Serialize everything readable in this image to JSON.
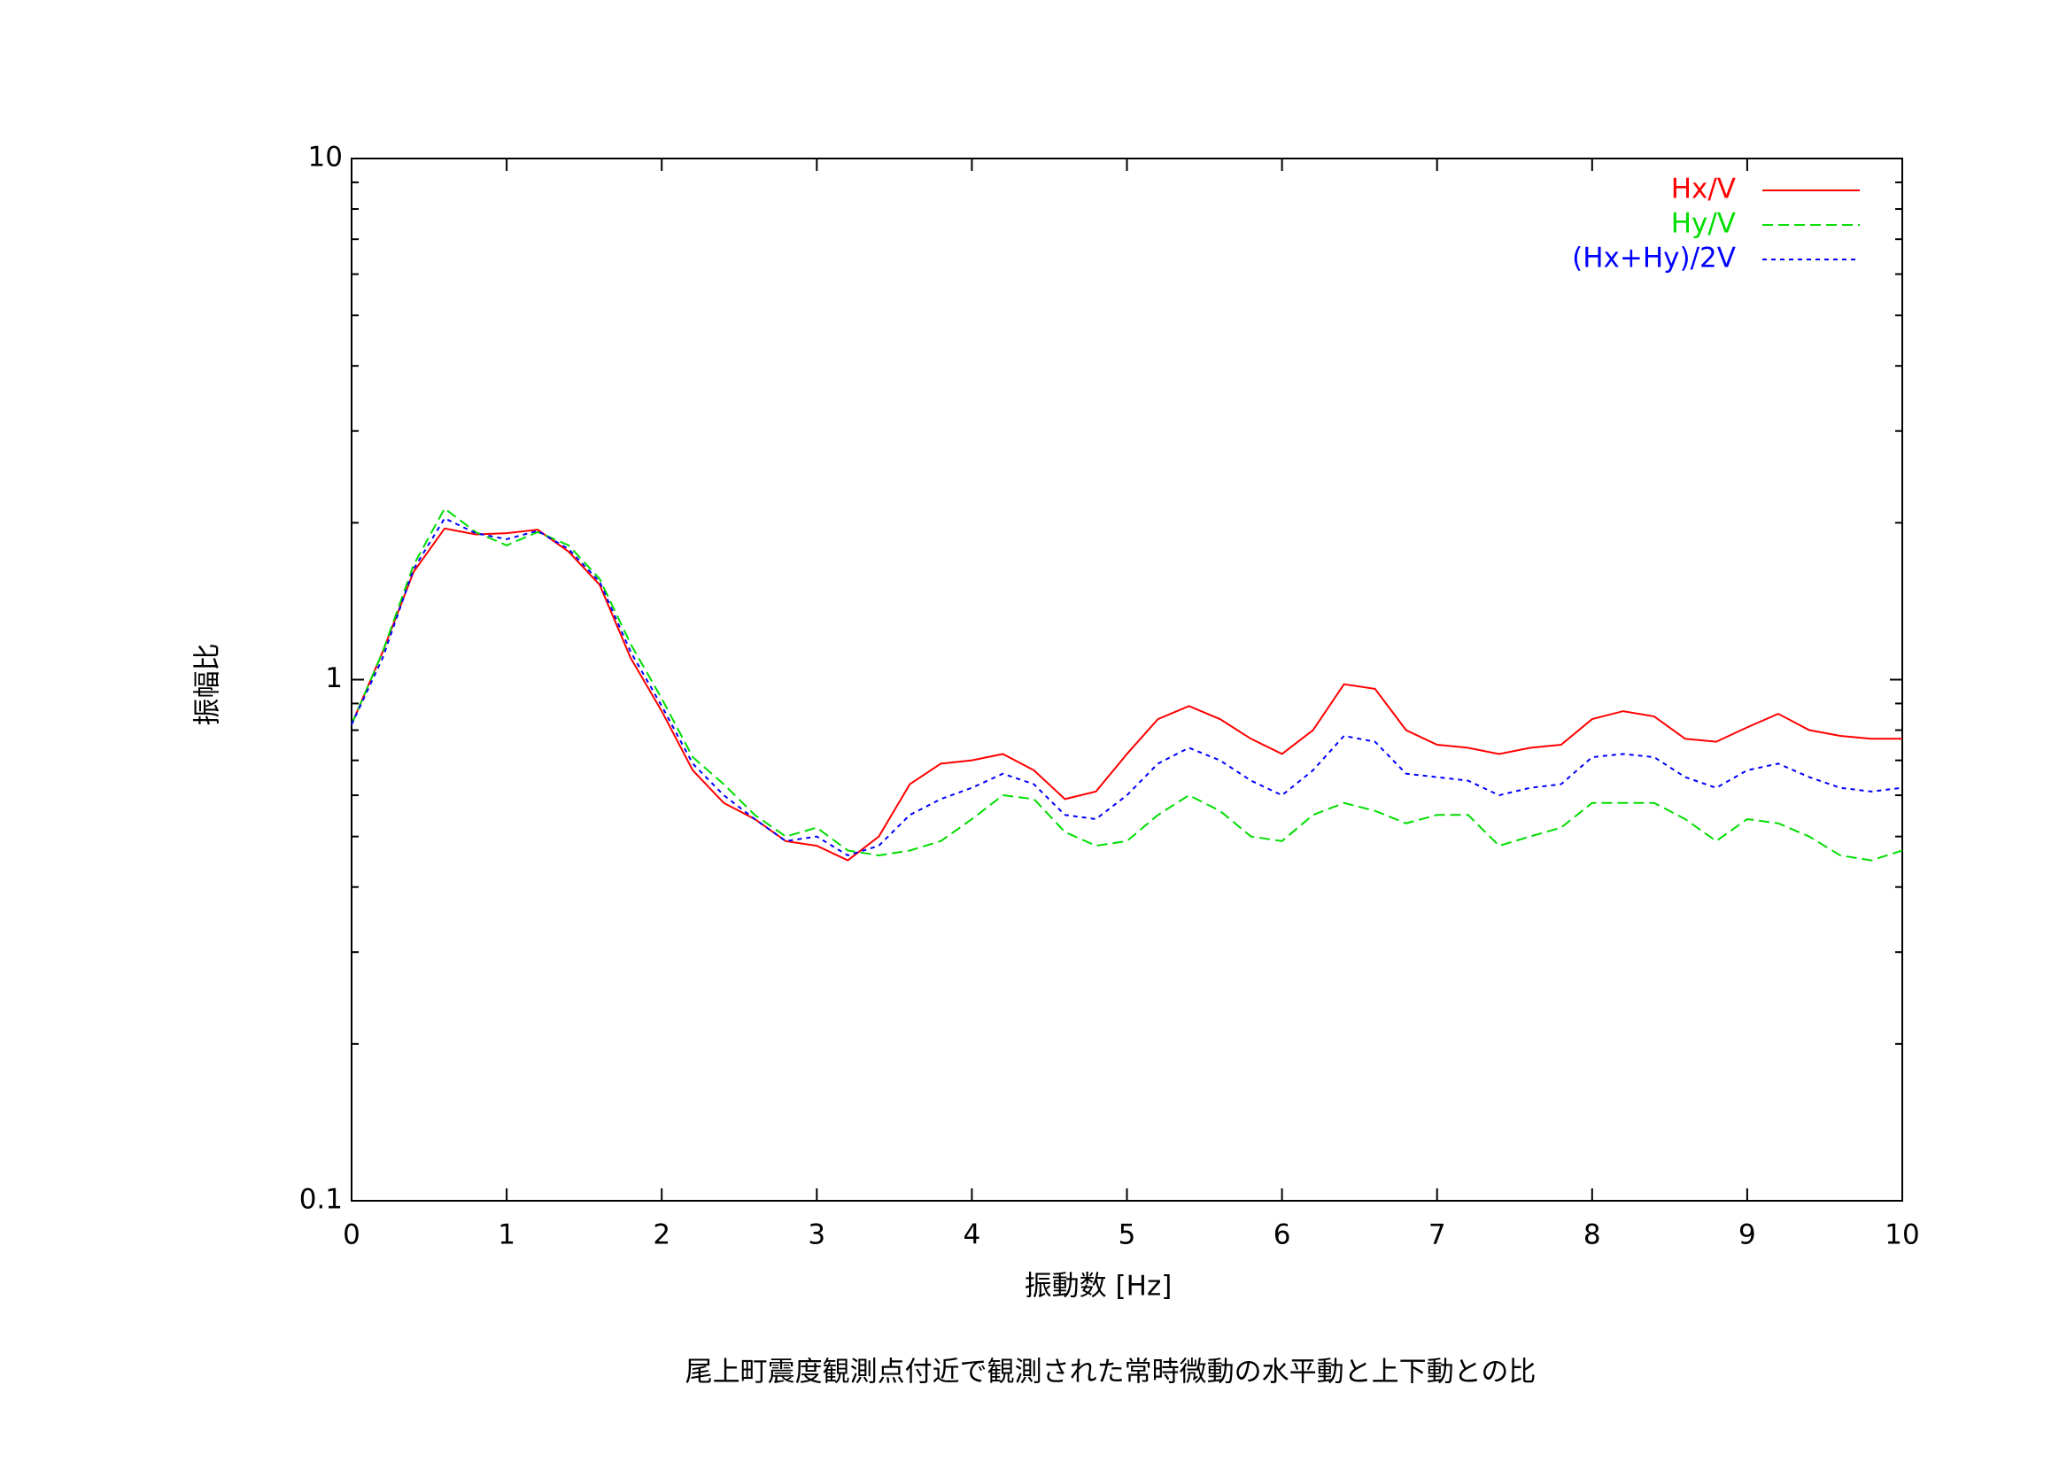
{
  "chart_data": {
    "type": "line",
    "title": "尾上町震度観測点付近で観測された常時微動の水平動と上下動との比",
    "x_label": "振動数 [Hz]",
    "y_label": "振幅比",
    "xlim": [
      0,
      10
    ],
    "xticks": [
      0,
      1,
      2,
      3,
      4,
      5,
      6,
      7,
      8,
      9,
      10
    ],
    "ylim": [
      0.1,
      10
    ],
    "yticks": [
      0.1,
      1,
      10
    ],
    "log_y": true,
    "legend": "top-right",
    "x": [
      0,
      0.2,
      0.4,
      0.6,
      0.8,
      1.0,
      1.2,
      1.4,
      1.6,
      1.8,
      2.0,
      2.2,
      2.4,
      2.6,
      2.8,
      3.0,
      3.2,
      3.4,
      3.6,
      3.8,
      4.0,
      4.2,
      4.4,
      4.6,
      4.8,
      5.0,
      5.2,
      5.4,
      5.6,
      5.8,
      6.0,
      6.2,
      6.4,
      6.6,
      6.8,
      7.0,
      7.2,
      7.4,
      7.6,
      7.8,
      8.0,
      8.2,
      8.4,
      8.6,
      8.8,
      9.0,
      9.2,
      9.4,
      9.6,
      9.8,
      10
    ],
    "series": [
      {
        "name": "Hx/V",
        "color": "#ff0000",
        "dash": "solid",
        "values": [
          0.82,
          1.13,
          1.61,
          1.95,
          1.9,
          1.91,
          1.94,
          1.76,
          1.52,
          1.1,
          0.87,
          0.67,
          0.58,
          0.54,
          0.49,
          0.48,
          0.45,
          0.5,
          0.63,
          0.69,
          0.7,
          0.72,
          0.67,
          0.59,
          0.61,
          0.72,
          0.84,
          0.89,
          0.84,
          0.77,
          0.72,
          0.8,
          0.98,
          0.96,
          0.8,
          0.75,
          0.74,
          0.72,
          0.74,
          0.75,
          0.84,
          0.87,
          0.85,
          0.77,
          0.76,
          0.81,
          0.86,
          0.8,
          0.78,
          0.77,
          0.77
        ]
      },
      {
        "name": "Hy/V",
        "color": "#00dd00",
        "dash": "dashed",
        "values": [
          0.82,
          1.13,
          1.66,
          2.13,
          1.92,
          1.81,
          1.92,
          1.81,
          1.56,
          1.17,
          0.92,
          0.71,
          0.63,
          0.55,
          0.5,
          0.52,
          0.47,
          0.46,
          0.47,
          0.49,
          0.54,
          0.6,
          0.59,
          0.51,
          0.48,
          0.49,
          0.55,
          0.6,
          0.56,
          0.5,
          0.49,
          0.55,
          0.58,
          0.56,
          0.53,
          0.55,
          0.55,
          0.48,
          0.5,
          0.52,
          0.58,
          0.58,
          0.58,
          0.54,
          0.49,
          0.54,
          0.53,
          0.5,
          0.46,
          0.45,
          0.47
        ]
      },
      {
        "name": "(Hx+Hy)/2V",
        "color": "#0000ff",
        "dash": "dotted",
        "values": [
          0.82,
          1.1,
          1.63,
          2.04,
          1.91,
          1.86,
          1.93,
          1.78,
          1.54,
          1.13,
          0.89,
          0.69,
          0.6,
          0.54,
          0.49,
          0.5,
          0.46,
          0.48,
          0.55,
          0.59,
          0.62,
          0.66,
          0.63,
          0.55,
          0.54,
          0.6,
          0.69,
          0.74,
          0.7,
          0.64,
          0.6,
          0.67,
          0.78,
          0.76,
          0.66,
          0.65,
          0.64,
          0.6,
          0.62,
          0.63,
          0.71,
          0.72,
          0.71,
          0.65,
          0.62,
          0.67,
          0.69,
          0.65,
          0.62,
          0.61,
          0.62
        ]
      }
    ]
  }
}
